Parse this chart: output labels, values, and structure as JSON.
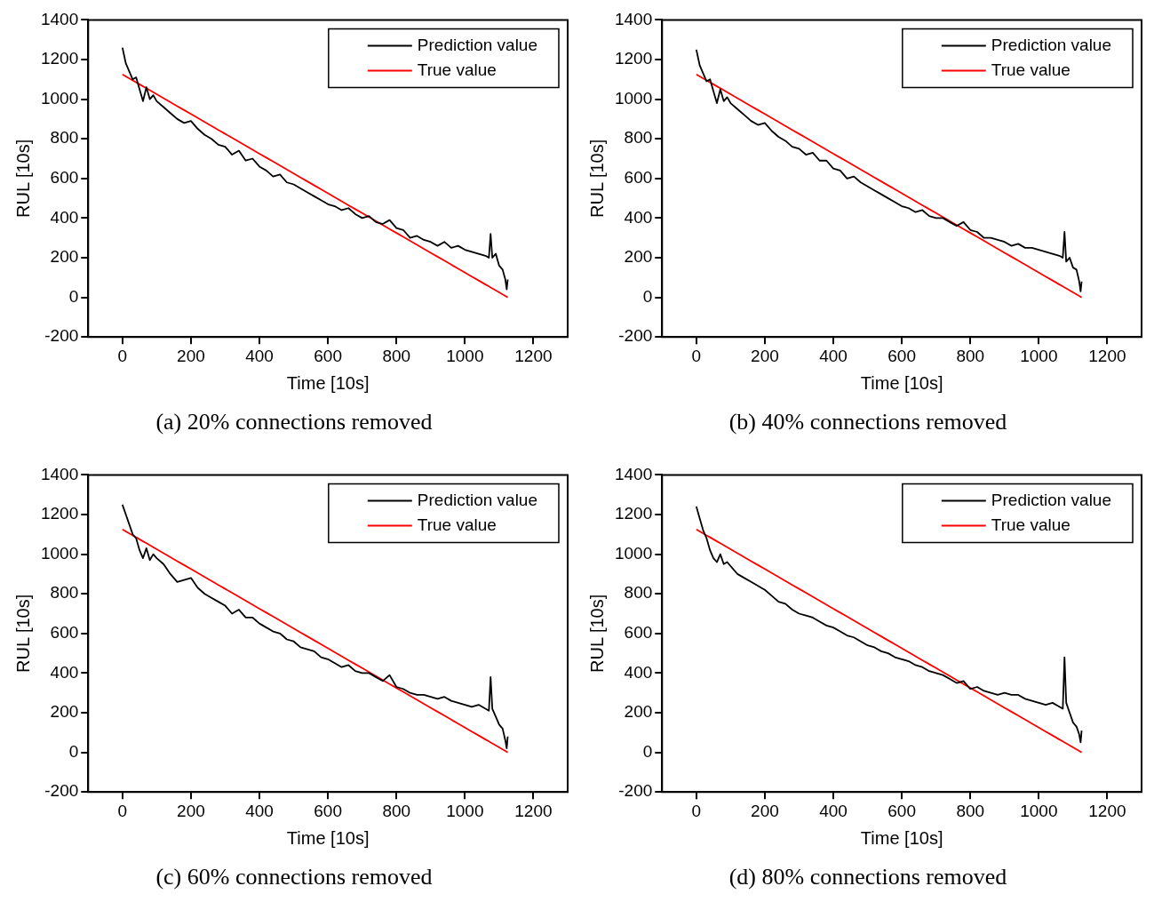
{
  "chart_data": [
    {
      "type": "line",
      "title": "(a)  20% connections removed",
      "xlabel": "Time [10s]",
      "ylabel": "RUL [10s]",
      "xlim": [
        -100,
        1300
      ],
      "xticks": [
        0,
        200,
        400,
        600,
        800,
        1000,
        1200
      ],
      "ylim": [
        -200,
        1400
      ],
      "yticks": [
        -200,
        0,
        200,
        400,
        600,
        800,
        1000,
        1200,
        1400
      ],
      "legend": "top right",
      "grid": false,
      "x": [
        0,
        10,
        20,
        30,
        40,
        50,
        60,
        70,
        80,
        90,
        100,
        120,
        140,
        160,
        180,
        200,
        220,
        240,
        260,
        280,
        300,
        320,
        340,
        360,
        380,
        400,
        420,
        440,
        460,
        480,
        500,
        520,
        540,
        560,
        580,
        600,
        620,
        640,
        660,
        680,
        700,
        720,
        740,
        760,
        780,
        800,
        820,
        840,
        860,
        880,
        900,
        920,
        940,
        960,
        980,
        1000,
        1020,
        1040,
        1060,
        1070,
        1075,
        1080,
        1090,
        1100,
        1110,
        1118,
        1122,
        1125
      ],
      "series": [
        {
          "name": "Prediction value",
          "color": "#000000",
          "values": [
            1260,
            1180,
            1140,
            1100,
            1110,
            1050,
            990,
            1060,
            1000,
            1020,
            990,
            960,
            930,
            900,
            880,
            890,
            850,
            820,
            800,
            770,
            760,
            720,
            740,
            690,
            700,
            660,
            640,
            610,
            620,
            580,
            570,
            550,
            530,
            510,
            490,
            470,
            460,
            440,
            450,
            420,
            400,
            410,
            380,
            370,
            390,
            350,
            340,
            300,
            310,
            290,
            280,
            260,
            280,
            250,
            260,
            240,
            230,
            220,
            210,
            200,
            320,
            200,
            220,
            160,
            140,
            90,
            40,
            90
          ]
        },
        {
          "name": "True value",
          "color": "#ff0000",
          "values": [
            1125,
            1115,
            1105,
            1095,
            1085,
            1075,
            1065,
            1055,
            1045,
            1035,
            1025,
            1005,
            985,
            965,
            945,
            925,
            905,
            885,
            865,
            845,
            825,
            805,
            785,
            765,
            745,
            725,
            705,
            685,
            665,
            645,
            625,
            605,
            585,
            565,
            545,
            525,
            505,
            485,
            465,
            445,
            425,
            405,
            385,
            365,
            345,
            325,
            305,
            285,
            265,
            245,
            225,
            205,
            185,
            165,
            145,
            125,
            105,
            85,
            65,
            55,
            50,
            45,
            35,
            25,
            15,
            7,
            3,
            0
          ]
        }
      ]
    },
    {
      "type": "line",
      "title": "(b)  40% connections removed",
      "xlabel": "Time [10s]",
      "ylabel": "RUL [10s]",
      "xlim": [
        -100,
        1300
      ],
      "xticks": [
        0,
        200,
        400,
        600,
        800,
        1000,
        1200
      ],
      "ylim": [
        -200,
        1400
      ],
      "yticks": [
        -200,
        0,
        200,
        400,
        600,
        800,
        1000,
        1200,
        1400
      ],
      "legend": "top right",
      "grid": false,
      "x": [
        0,
        10,
        20,
        30,
        40,
        50,
        60,
        70,
        80,
        90,
        100,
        120,
        140,
        160,
        180,
        200,
        220,
        240,
        260,
        280,
        300,
        320,
        340,
        360,
        380,
        400,
        420,
        440,
        460,
        480,
        500,
        520,
        540,
        560,
        580,
        600,
        620,
        640,
        660,
        680,
        700,
        720,
        740,
        760,
        780,
        800,
        820,
        840,
        860,
        880,
        900,
        920,
        940,
        960,
        980,
        1000,
        1020,
        1040,
        1060,
        1070,
        1075,
        1080,
        1090,
        1100,
        1110,
        1118,
        1122,
        1125
      ],
      "series": [
        {
          "name": "Prediction value",
          "color": "#000000",
          "values": [
            1250,
            1170,
            1130,
            1090,
            1100,
            1040,
            980,
            1050,
            990,
            1010,
            980,
            950,
            920,
            890,
            870,
            880,
            840,
            810,
            790,
            760,
            750,
            720,
            730,
            690,
            690,
            650,
            640,
            600,
            610,
            580,
            560,
            540,
            520,
            500,
            480,
            460,
            450,
            430,
            440,
            410,
            400,
            400,
            380,
            360,
            380,
            340,
            330,
            300,
            300,
            290,
            280,
            260,
            270,
            250,
            250,
            240,
            230,
            220,
            210,
            200,
            330,
            180,
            200,
            150,
            140,
            80,
            30,
            80
          ]
        },
        {
          "name": "True value",
          "color": "#ff0000",
          "values": [
            1125,
            1115,
            1105,
            1095,
            1085,
            1075,
            1065,
            1055,
            1045,
            1035,
            1025,
            1005,
            985,
            965,
            945,
            925,
            905,
            885,
            865,
            845,
            825,
            805,
            785,
            765,
            745,
            725,
            705,
            685,
            665,
            645,
            625,
            605,
            585,
            565,
            545,
            525,
            505,
            485,
            465,
            445,
            425,
            405,
            385,
            365,
            345,
            325,
            305,
            285,
            265,
            245,
            225,
            205,
            185,
            165,
            145,
            125,
            105,
            85,
            65,
            55,
            50,
            45,
            35,
            25,
            15,
            7,
            3,
            0
          ]
        }
      ]
    },
    {
      "type": "line",
      "title": "(c)  60% connections removed",
      "xlabel": "Time [10s]",
      "ylabel": "RUL [10s]",
      "xlim": [
        -100,
        1300
      ],
      "xticks": [
        0,
        200,
        400,
        600,
        800,
        1000,
        1200
      ],
      "ylim": [
        -200,
        1400
      ],
      "yticks": [
        -200,
        0,
        200,
        400,
        600,
        800,
        1000,
        1200,
        1400
      ],
      "legend": "top right",
      "grid": false,
      "x": [
        0,
        10,
        20,
        30,
        40,
        50,
        60,
        70,
        80,
        90,
        100,
        120,
        140,
        160,
        180,
        200,
        220,
        240,
        260,
        280,
        300,
        320,
        340,
        360,
        380,
        400,
        420,
        440,
        460,
        480,
        500,
        520,
        540,
        560,
        580,
        600,
        620,
        640,
        660,
        680,
        700,
        720,
        740,
        760,
        780,
        800,
        820,
        840,
        860,
        880,
        900,
        920,
        940,
        960,
        980,
        1000,
        1020,
        1040,
        1060,
        1070,
        1075,
        1080,
        1090,
        1100,
        1110,
        1118,
        1122,
        1125
      ],
      "series": [
        {
          "name": "Prediction value",
          "color": "#000000",
          "values": [
            1250,
            1200,
            1150,
            1100,
            1080,
            1020,
            980,
            1030,
            970,
            1000,
            980,
            950,
            900,
            860,
            870,
            880,
            830,
            800,
            780,
            760,
            740,
            700,
            720,
            680,
            680,
            650,
            630,
            610,
            600,
            570,
            560,
            530,
            520,
            510,
            480,
            470,
            450,
            430,
            440,
            410,
            400,
            400,
            380,
            360,
            390,
            330,
            320,
            300,
            290,
            290,
            280,
            270,
            280,
            260,
            250,
            240,
            230,
            240,
            220,
            210,
            380,
            220,
            180,
            140,
            120,
            60,
            20,
            80
          ]
        },
        {
          "name": "True value",
          "color": "#ff0000",
          "values": [
            1125,
            1115,
            1105,
            1095,
            1085,
            1075,
            1065,
            1055,
            1045,
            1035,
            1025,
            1005,
            985,
            965,
            945,
            925,
            905,
            885,
            865,
            845,
            825,
            805,
            785,
            765,
            745,
            725,
            705,
            685,
            665,
            645,
            625,
            605,
            585,
            565,
            545,
            525,
            505,
            485,
            465,
            445,
            425,
            405,
            385,
            365,
            345,
            325,
            305,
            285,
            265,
            245,
            225,
            205,
            185,
            165,
            145,
            125,
            105,
            85,
            65,
            55,
            50,
            45,
            35,
            25,
            15,
            7,
            3,
            0
          ]
        }
      ]
    },
    {
      "type": "line",
      "title": "(d)  80% connections removed",
      "xlabel": "Time [10s]",
      "ylabel": "RUL [10s]",
      "xlim": [
        -100,
        1300
      ],
      "xticks": [
        0,
        200,
        400,
        600,
        800,
        1000,
        1200
      ],
      "ylim": [
        -200,
        1400
      ],
      "yticks": [
        -200,
        0,
        200,
        400,
        600,
        800,
        1000,
        1200,
        1400
      ],
      "legend": "top right",
      "grid": false,
      "x": [
        0,
        10,
        20,
        30,
        40,
        50,
        60,
        70,
        80,
        90,
        100,
        120,
        140,
        160,
        180,
        200,
        220,
        240,
        260,
        280,
        300,
        320,
        340,
        360,
        380,
        400,
        420,
        440,
        460,
        480,
        500,
        520,
        540,
        560,
        580,
        600,
        620,
        640,
        660,
        680,
        700,
        720,
        740,
        760,
        780,
        800,
        820,
        840,
        860,
        880,
        900,
        920,
        940,
        960,
        980,
        1000,
        1020,
        1040,
        1060,
        1070,
        1075,
        1080,
        1090,
        1100,
        1110,
        1118,
        1122,
        1125
      ],
      "series": [
        {
          "name": "Prediction value",
          "color": "#000000",
          "values": [
            1240,
            1180,
            1120,
            1080,
            1020,
            980,
            960,
            1000,
            950,
            960,
            940,
            900,
            880,
            860,
            840,
            820,
            790,
            760,
            750,
            720,
            700,
            690,
            680,
            660,
            640,
            630,
            610,
            590,
            580,
            560,
            540,
            530,
            510,
            500,
            480,
            470,
            460,
            440,
            430,
            410,
            400,
            390,
            370,
            350,
            360,
            320,
            330,
            310,
            300,
            290,
            300,
            290,
            290,
            270,
            260,
            250,
            240,
            250,
            230,
            220,
            480,
            250,
            200,
            150,
            130,
            90,
            50,
            110
          ]
        },
        {
          "name": "True value",
          "color": "#ff0000",
          "values": [
            1125,
            1115,
            1105,
            1095,
            1085,
            1075,
            1065,
            1055,
            1045,
            1035,
            1025,
            1005,
            985,
            965,
            945,
            925,
            905,
            885,
            865,
            845,
            825,
            805,
            785,
            765,
            745,
            725,
            705,
            685,
            665,
            645,
            625,
            605,
            585,
            565,
            545,
            525,
            505,
            485,
            465,
            445,
            425,
            405,
            385,
            365,
            345,
            325,
            305,
            285,
            265,
            245,
            225,
            205,
            185,
            165,
            145,
            125,
            105,
            85,
            65,
            55,
            50,
            45,
            35,
            25,
            15,
            7,
            3,
            0
          ]
        }
      ]
    }
  ]
}
